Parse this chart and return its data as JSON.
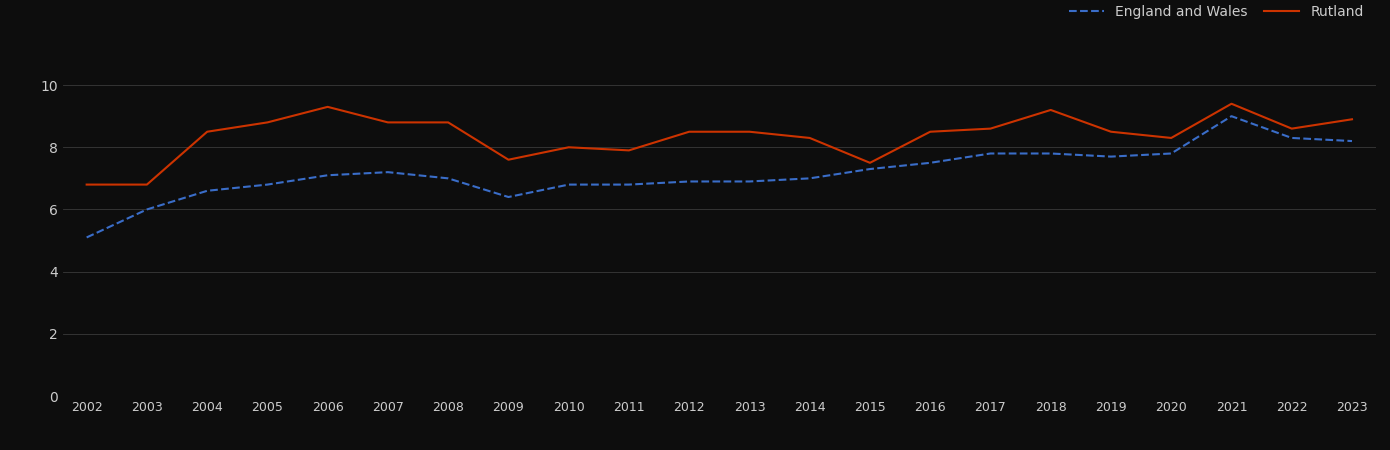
{
  "years": [
    2002,
    2003,
    2004,
    2005,
    2006,
    2007,
    2008,
    2009,
    2010,
    2011,
    2012,
    2013,
    2014,
    2015,
    2016,
    2017,
    2018,
    2019,
    2020,
    2021,
    2022,
    2023
  ],
  "england_wales": [
    5.1,
    6.0,
    6.6,
    6.8,
    7.1,
    7.2,
    7.0,
    6.4,
    6.8,
    6.8,
    6.9,
    6.9,
    7.0,
    7.3,
    7.5,
    7.8,
    7.8,
    7.7,
    7.8,
    9.0,
    8.3,
    8.2
  ],
  "rutland": [
    6.8,
    6.8,
    8.5,
    8.8,
    9.3,
    8.8,
    8.8,
    7.6,
    8.0,
    7.9,
    8.5,
    8.5,
    8.3,
    7.5,
    8.5,
    8.6,
    9.2,
    8.5,
    8.3,
    9.4,
    8.6,
    8.9
  ],
  "england_wales_color": "#3a6dc8",
  "rutland_color": "#cc3300",
  "background_color": "#0d0d0d",
  "grid_color": "#3a3a3a",
  "text_color": "#cccccc",
  "ylim": [
    0,
    11
  ],
  "yticks": [
    0,
    2,
    4,
    6,
    8,
    10
  ],
  "legend_labels": [
    "England and Wales",
    "Rutland"
  ],
  "line_width": 1.5
}
